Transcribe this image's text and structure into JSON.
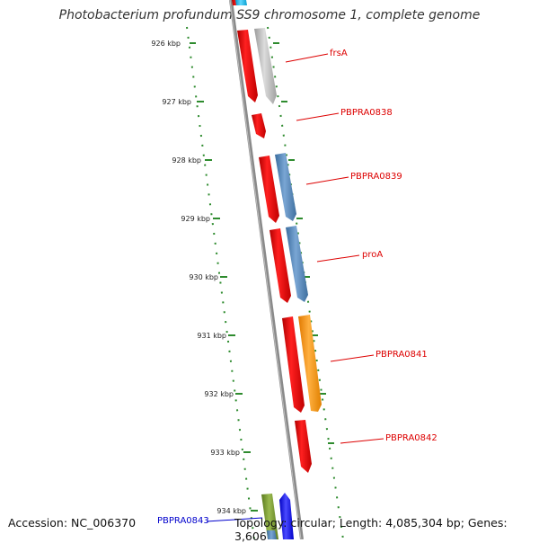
{
  "title": "Photobacterium profundum SS9 chromosome 1, complete genome",
  "footer": {
    "accession": "Accession: NC_006370",
    "topology": "Topology: circular; Length: 4,085,304 bp; Genes: 3,606"
  },
  "colors": {
    "backbone": "#8a8a8a",
    "ruler": "#2e8b2e",
    "gene_red": "#ff0000",
    "gene_grey": "#b8b8b8",
    "gene_steelblue": "#5a8cbe",
    "gene_orange": "#ff9a1a",
    "gene_olive": "#7a9a2e",
    "gene_blue": "#1a1aff",
    "gene_cyan": "#22c0ee",
    "label_red": "#dd0000",
    "label_blue": "#0000cc"
  },
  "ticks": [
    {
      "label": "926 kbp"
    },
    {
      "label": "927 kbp"
    },
    {
      "label": "928 kbp"
    },
    {
      "label": "929 kbp"
    },
    {
      "label": "930 kbp"
    },
    {
      "label": "931 kbp"
    },
    {
      "label": "932 kbp"
    },
    {
      "label": "933 kbp"
    },
    {
      "label": "934 kbp"
    }
  ],
  "genes": [
    {
      "name": "frsA",
      "color": "gene_red"
    },
    {
      "name": "PBPRA0838",
      "color": "gene_red"
    },
    {
      "name": "PBPRA0839",
      "color": "gene_red"
    },
    {
      "name": "proA",
      "color": "gene_red"
    },
    {
      "name": "PBPRA0841",
      "color": "gene_red"
    },
    {
      "name": "PBPRA0842",
      "color": "gene_red"
    },
    {
      "name": "PBPRA0843",
      "color": "gene_blue"
    }
  ]
}
